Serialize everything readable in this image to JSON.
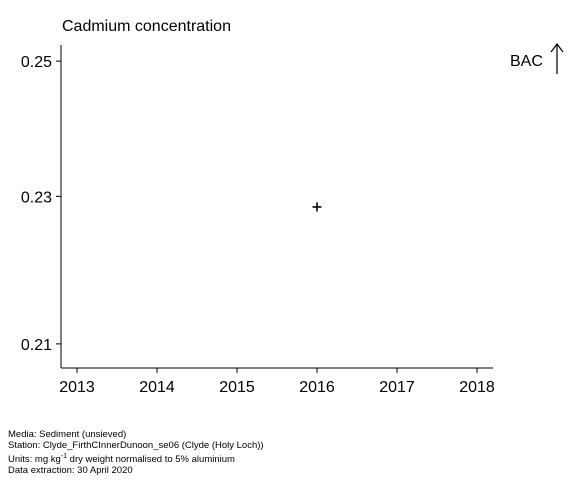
{
  "chart_data": {
    "type": "scatter",
    "title": "Cadmium concentration",
    "x_ticks": [
      2013,
      2014,
      2015,
      2016,
      2017,
      2018
    ],
    "y_ticks": [
      "0.21",
      "0.23",
      "0.25"
    ],
    "xlim": [
      2012.8,
      2018.2
    ],
    "ylim": [
      0.2069,
      0.2525
    ],
    "points": [
      {
        "x": 2016,
        "y": 0.2285,
        "marker": "+"
      }
    ],
    "reference": {
      "label": "BAC",
      "direction": "up",
      "note": "off scale above"
    },
    "log_y": true
  },
  "footer": {
    "media": "Media: Sediment (unsieved)",
    "station": "Station: Clyde_FirthCInnerDunoon_se06 (Clyde (Holy Loch))",
    "units_prefix": "Units:  mg kg",
    "units_sup": "-1",
    "units_suffix": " dry weight normalised to 5% aluminium",
    "extraction": "Data extraction: 30 April 2020"
  }
}
